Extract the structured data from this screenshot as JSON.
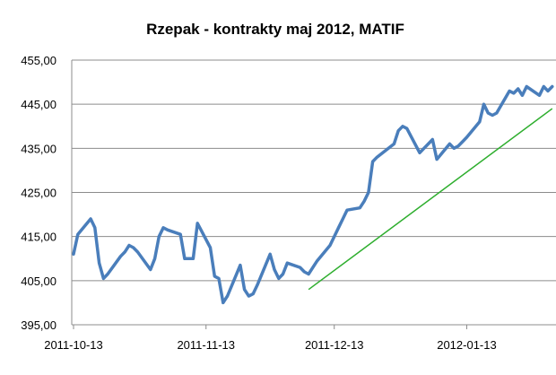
{
  "chart_data": {
    "type": "line",
    "title": "Rzepak - kontrakty maj 2012, MATIF",
    "xlabel": "",
    "ylabel": "",
    "x_tick_labels": [
      "2011-10-13",
      "2011-11-13",
      "2011-12-13",
      "2012-01-13"
    ],
    "y_tick_labels": [
      "395,00",
      "405,00",
      "415,00",
      "425,00",
      "435,00",
      "445,00",
      "455,00"
    ],
    "ylim": [
      395,
      455
    ],
    "xlim": [
      "2011-10-13",
      "2012-02-02"
    ],
    "grid": "horizontal",
    "legend": "none",
    "series": [
      {
        "color": "#4a7ebb",
        "x": [
          "2011-10-13",
          "2011-10-14",
          "2011-10-17",
          "2011-10-18",
          "2011-10-19",
          "2011-10-20",
          "2011-10-21",
          "2011-10-24",
          "2011-10-25",
          "2011-10-26",
          "2011-10-27",
          "2011-10-28",
          "2011-10-31",
          "2011-11-01",
          "2011-11-02",
          "2011-11-03",
          "2011-11-04",
          "2011-11-07",
          "2011-11-08",
          "2011-11-09",
          "2011-11-10",
          "2011-11-11",
          "2011-11-14",
          "2011-11-15",
          "2011-11-16",
          "2011-11-17",
          "2011-11-18",
          "2011-11-21",
          "2011-11-22",
          "2011-11-23",
          "2011-11-24",
          "2011-11-25",
          "2011-11-28",
          "2011-11-29",
          "2011-11-30",
          "2011-12-01",
          "2011-12-02",
          "2011-12-05",
          "2011-12-06",
          "2011-12-07",
          "2011-12-08",
          "2011-12-09",
          "2011-12-12",
          "2011-12-13",
          "2011-12-14",
          "2011-12-15",
          "2011-12-16",
          "2011-12-19",
          "2011-12-20",
          "2011-12-21",
          "2011-12-22",
          "2011-12-23",
          "2011-12-27",
          "2011-12-28",
          "2011-12-29",
          "2011-12-30",
          "2012-01-02",
          "2012-01-03",
          "2012-01-04",
          "2012-01-05",
          "2012-01-06",
          "2012-01-09",
          "2012-01-10",
          "2012-01-11",
          "2012-01-12",
          "2012-01-13",
          "2012-01-16",
          "2012-01-17",
          "2012-01-18",
          "2012-01-19",
          "2012-01-20",
          "2012-01-23",
          "2012-01-24",
          "2012-01-25",
          "2012-01-26",
          "2012-01-27",
          "2012-01-30",
          "2012-01-31",
          "2012-02-01",
          "2012-02-02"
        ],
        "values": [
          411,
          415.5,
          419,
          417,
          409,
          405.5,
          406.5,
          410.5,
          411.5,
          413,
          412.5,
          411.5,
          407.5,
          410,
          415,
          417,
          416.5,
          415.5,
          410,
          410,
          410,
          418,
          412.5,
          406,
          405.5,
          400,
          401.5,
          408.5,
          403,
          401.5,
          402,
          404,
          411,
          407.5,
          405.5,
          406.5,
          409,
          408,
          407,
          406.5,
          408,
          409.5,
          413,
          415,
          417,
          419,
          421,
          421.5,
          423,
          425,
          432,
          433,
          436,
          439,
          440,
          439.5,
          434,
          435,
          436,
          437,
          432.5,
          436,
          435,
          435.5,
          436.5,
          437.5,
          441,
          445,
          443,
          442.5,
          443,
          448,
          447.5,
          448.5,
          447,
          449,
          447,
          449,
          448,
          449
        ]
      }
    ],
    "trendline": {
      "color": "#2eae2e",
      "x": [
        "2011-12-07",
        "2012-02-02"
      ],
      "values": [
        403,
        444
      ]
    }
  }
}
